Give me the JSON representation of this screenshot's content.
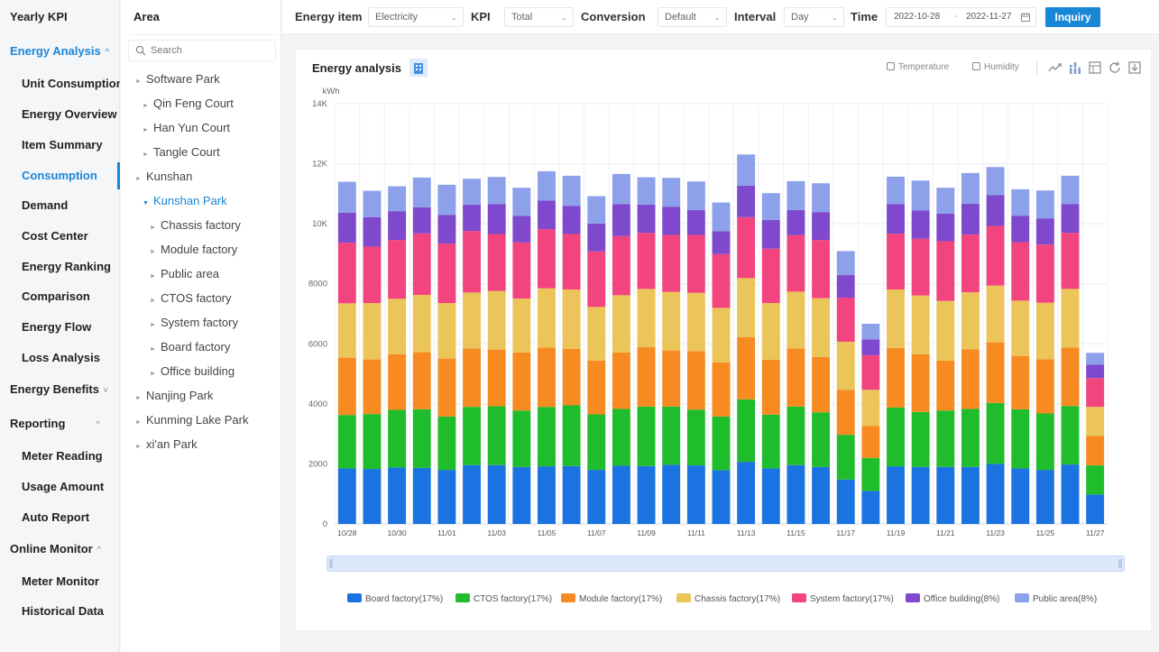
{
  "nav": {
    "title": "Yearly KPI",
    "items": [
      {
        "label": "Energy Analysis",
        "caret": "^"
      },
      {
        "label": "Unit Consumption"
      },
      {
        "label": "Energy Overview"
      },
      {
        "label": "Item Summary"
      },
      {
        "label": "Consumption"
      },
      {
        "label": "Demand"
      },
      {
        "label": "Cost Center"
      },
      {
        "label": "Energy Ranking"
      },
      {
        "label": "Comparison"
      },
      {
        "label": "Energy Flow"
      },
      {
        "label": "Loss Analysis"
      },
      {
        "label": "Energy Benefits",
        "caret": "v"
      },
      {
        "label": "Reporting",
        "caret": "^"
      },
      {
        "label": "Meter Reading"
      },
      {
        "label": "Usage Amount"
      },
      {
        "label": "Auto Report"
      },
      {
        "label": "Online Monitor",
        "caret": "^"
      },
      {
        "label": "Meter Monitor"
      },
      {
        "label": "Historical Data"
      }
    ]
  },
  "area": {
    "title": "Area",
    "search_placeholder": "Search",
    "tree": [
      {
        "label": "Software Park"
      },
      {
        "label": "Qin Feng Court"
      },
      {
        "label": "Han Yun Court"
      },
      {
        "label": "Tangle Court"
      },
      {
        "label": "Kunshan"
      },
      {
        "label": "Kunshan Park"
      },
      {
        "label": "Chassis factory"
      },
      {
        "label": "Module factory"
      },
      {
        "label": "Public area"
      },
      {
        "label": "CTOS factory"
      },
      {
        "label": "System factory"
      },
      {
        "label": "Board factory"
      },
      {
        "label": "Office building"
      },
      {
        "label": "Nanjing Park"
      },
      {
        "label": "Kunming Lake Park"
      },
      {
        "label": "xi'an Park"
      }
    ]
  },
  "filters": {
    "energy_item_label": "Energy item",
    "energy_item_value": "Electricity",
    "kpi_label": "KPI",
    "kpi_value": "Total",
    "conversion_label": "Conversion",
    "conversion_value": "Default",
    "interval_label": "Interval",
    "interval_value": "Day",
    "time_label": "Time",
    "date_start": "2022-10-28",
    "date_sep": "-",
    "date_end": "2022-11-27",
    "inquiry_label": "Inquiry"
  },
  "card": {
    "title": "Energy analysis",
    "temperature_label": "Temperature",
    "humidity_label": "Humidity"
  },
  "chart_data": {
    "type": "bar",
    "stacked": true,
    "title": "Energy analysis",
    "ylabel": "kWh",
    "ylim": [
      0,
      14000
    ],
    "yticks": [
      0,
      2000,
      4000,
      6000,
      8000,
      10000,
      12000,
      14000
    ],
    "ytick_labels": [
      "0",
      "2000",
      "4000",
      "6000",
      "8000",
      "10K",
      "12K",
      "14K"
    ],
    "categories": [
      "10/28",
      "10/29",
      "10/30",
      "10/31",
      "11/01",
      "11/02",
      "11/03",
      "11/04",
      "11/05",
      "11/06",
      "11/07",
      "11/08",
      "11/09",
      "11/10",
      "11/11",
      "11/12",
      "11/13",
      "11/14",
      "11/15",
      "11/16",
      "11/17",
      "11/18",
      "11/19",
      "11/20",
      "11/21",
      "11/22",
      "11/23",
      "11/24",
      "11/25",
      "11/26",
      "11/27"
    ],
    "xtick_labels": [
      "10/28",
      "",
      "10/30",
      "",
      "11/01",
      "",
      "11/03",
      "",
      "11/05",
      "",
      "11/07",
      "",
      "11/09",
      "",
      "11/11",
      "",
      "11/13",
      "",
      "11/15",
      "",
      "11/17",
      "",
      "11/19",
      "",
      "11/21",
      "",
      "11/23",
      "",
      "11/25",
      "",
      "11/27"
    ],
    "series": [
      {
        "name": "Board factory(17%)",
        "color": "#1a73e0",
        "values": [
          1850,
          1830,
          1880,
          1870,
          1800,
          1960,
          1960,
          1900,
          1920,
          1930,
          1800,
          1940,
          1930,
          1970,
          1950,
          1790,
          2070,
          1850,
          1960,
          1900,
          1480,
          1100,
          1920,
          1900,
          1900,
          1900,
          2000,
          1850,
          1800,
          1980,
          980
        ]
      },
      {
        "name": "CTOS factory(17%)",
        "color": "#1fbd2c",
        "values": [
          1780,
          1830,
          1920,
          1950,
          1780,
          1940,
          1960,
          1880,
          1980,
          2020,
          1850,
          1890,
          1980,
          1940,
          1860,
          1790,
          2080,
          1790,
          1950,
          1820,
          1490,
          1100,
          1960,
          1830,
          1880,
          1930,
          2030,
          1970,
          1880,
          1950,
          970
        ]
      },
      {
        "name": "Module factory(17%)",
        "color": "#f78b22",
        "values": [
          1910,
          1820,
          1850,
          1900,
          1930,
          1950,
          1890,
          1930,
          1980,
          1880,
          1790,
          1880,
          1980,
          1870,
          1950,
          1800,
          2070,
          1830,
          1940,
          1840,
          1500,
          1070,
          1980,
          1920,
          1660,
          1990,
          2020,
          1770,
          1810,
          1950,
          980
        ]
      },
      {
        "name": "Chassis factory(17%)",
        "color": "#ebc45a",
        "values": [
          1810,
          1880,
          1850,
          1910,
          1850,
          1860,
          1950,
          1800,
          1970,
          1980,
          1790,
          1910,
          1940,
          1950,
          1940,
          1820,
          1970,
          1890,
          1890,
          1960,
          1600,
          1200,
          1950,
          1960,
          1990,
          1900,
          1890,
          1850,
          1880,
          1950,
          970
        ]
      },
      {
        "name": "System factory(17%)",
        "color": "#f2457f",
        "values": [
          2020,
          1880,
          1960,
          2050,
          1980,
          2050,
          1900,
          1870,
          1970,
          1850,
          1850,
          1970,
          1870,
          1900,
          1930,
          1790,
          2030,
          1810,
          1880,
          1940,
          1470,
          1150,
          1860,
          1890,
          1990,
          1920,
          1990,
          1950,
          1940,
          1870,
          960
        ]
      },
      {
        "name": "Office building(8%)",
        "color": "#7e49cc",
        "values": [
          1000,
          980,
          960,
          870,
          950,
          880,
          1000,
          880,
          950,
          930,
          930,
          1060,
          940,
          940,
          830,
          760,
          1050,
          960,
          840,
          930,
          750,
          530,
          980,
          940,
          920,
          1030,
          1030,
          880,
          870,
          960,
          450
        ]
      },
      {
        "name": "Public area(8%)",
        "color": "#8da0ea",
        "values": [
          1030,
          880,
          830,
          990,
          1010,
          860,
          900,
          940,
          980,
          1010,
          910,
          1010,
          910,
          960,
          950,
          960,
          1040,
          890,
          960,
          960,
          800,
          520,
          920,
          1000,
          860,
          1020,
          930,
          880,
          930,
          940,
          390
        ]
      }
    ]
  }
}
